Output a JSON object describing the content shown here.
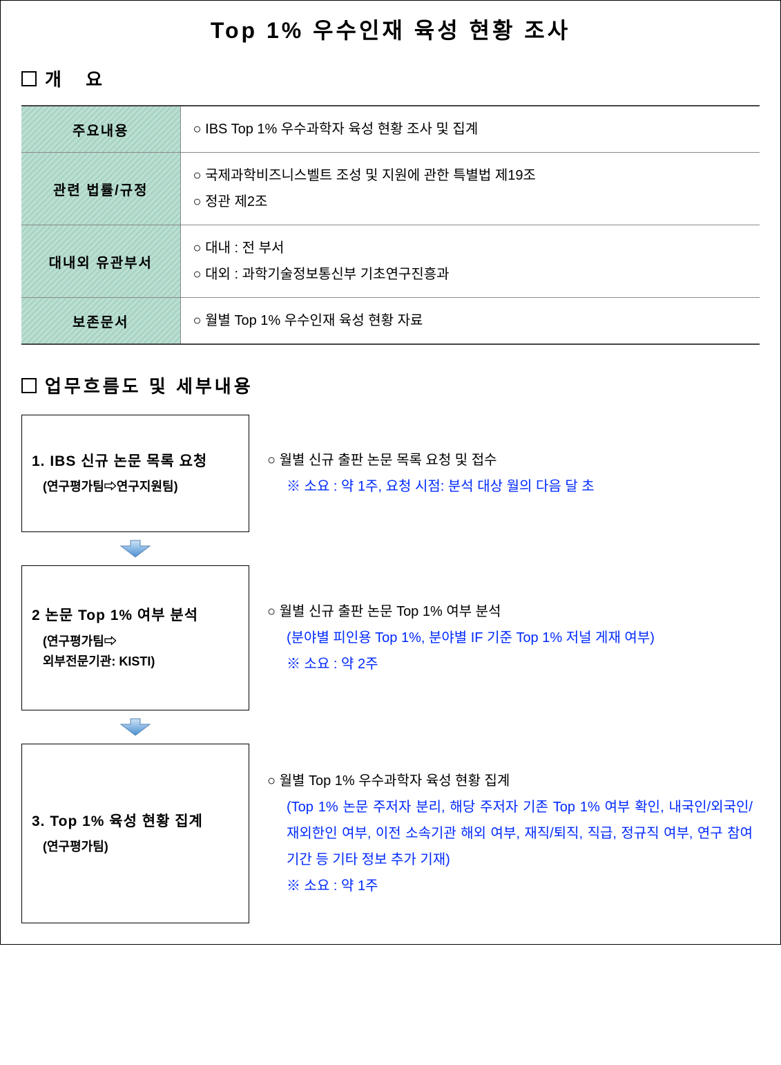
{
  "title": "Top 1% 우수인재 육성 현황 조사",
  "section1": {
    "header": "개  요"
  },
  "overview": {
    "rows": [
      {
        "label": "주요내용",
        "value": "○  IBS Top 1% 우수과학자 육성 현황 조사 및 집계"
      },
      {
        "label": "관련 법률/규정",
        "value": "○  국제과학비즈니스벨트 조성 및 지원에 관한 특별법 제19조\n○  정관 제2조"
      },
      {
        "label": "대내외 유관부서",
        "value": "○  대내 : 전 부서\n○  대외 : 과학기술정보통신부 기초연구진흥과"
      },
      {
        "label": "보존문서",
        "value": "○  월별 Top 1% 우수인재 육성 현황 자료"
      }
    ]
  },
  "section2": {
    "header": "업무흐름도 및 세부내용"
  },
  "flow": {
    "step1": {
      "title": "1. IBS 신규 논문 목록 요청",
      "sub": "(연구평가팀⇨연구지원팀)",
      "desc_main": "○  월별 신규 출판 논문 목록 요청 및 접수",
      "desc_note": "※ 소요 : 약 1주, 요청 시점: 분석 대상 월의 다음 달 초"
    },
    "step2": {
      "title": "2  논문 Top 1% 여부 분석",
      "sub1": "(연구평가팀⇨",
      "sub2": " 외부전문기관: KISTI)",
      "desc_main": "○  월별 신규 출판 논문 Top 1% 여부 분석",
      "desc_detail": "(분야별 피인용 Top 1%, 분야별 IF 기준 Top 1% 저널 게재 여부)",
      "desc_note": "※  소요 : 약 2주"
    },
    "step3": {
      "title": "3. Top 1% 육성 현황 집계",
      "sub": "(연구평가팀)",
      "desc_main": "○  월별 Top 1% 우수과학자 육성 현황 집계",
      "desc_detail": "(Top 1% 논문 주저자 분리, 해당 주저자 기존 Top 1% 여부 확인,  내국인/외국인/재외한인 여부, 이전 소속기관 해외 여부, 재직/퇴직, 직급, 정규직 여부, 연구 참여 기간 등 기타 정보 추가 기재)",
      "desc_note": "※  소요 : 약 1주"
    }
  },
  "colors": {
    "border": "#000000",
    "table_header_bg": "#a9d4c5",
    "blue_text": "#0029ff",
    "arrow_fill": "#5fa5e6"
  }
}
